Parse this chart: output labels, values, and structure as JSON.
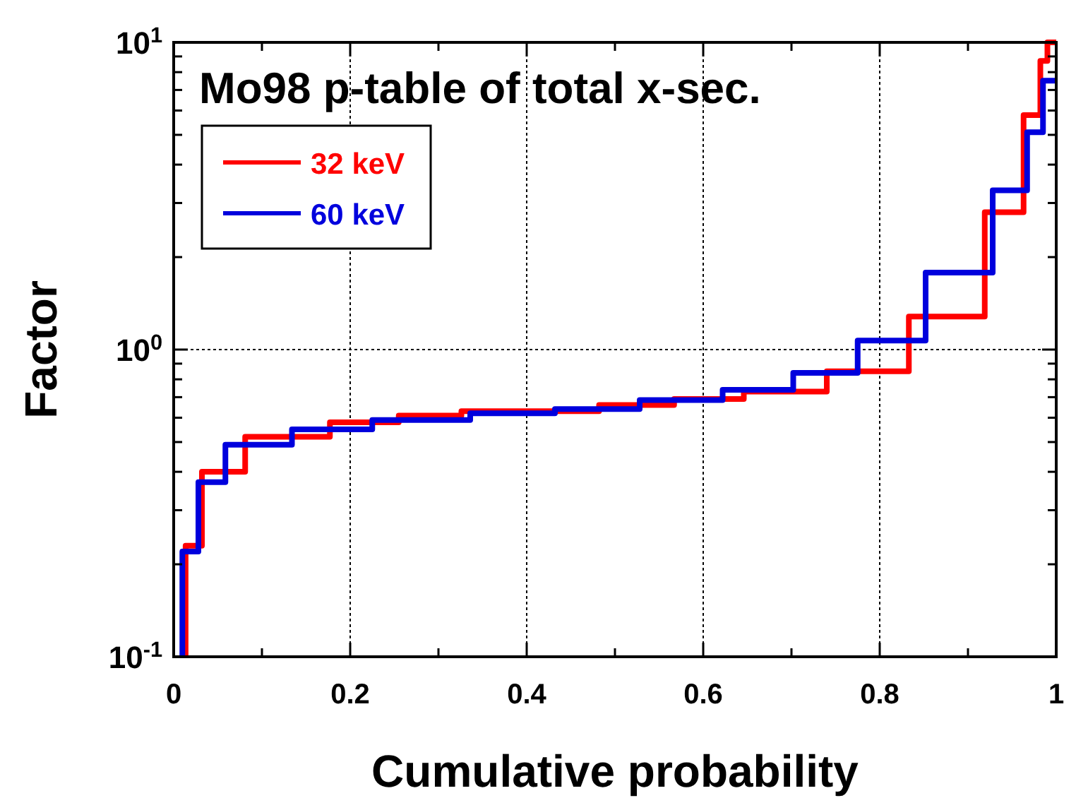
{
  "chart_data": {
    "type": "step",
    "title": "Mo98 p-table of total x-sec.",
    "xlabel": "Cumulative probability",
    "ylabel": "Factor",
    "log": "y",
    "grid": true,
    "legend": "top left",
    "line_style": "solid",
    "marker": "none",
    "xlim": [
      0,
      1
    ],
    "ylim": [
      0.1,
      10
    ],
    "xticks": [
      0,
      {
        "value": 0.1,
        "label": null
      },
      0.2,
      {
        "value": 0.3,
        "label": null
      },
      0.4,
      {
        "value": 0.5,
        "label": null
      },
      0.6,
      {
        "value": 0.7,
        "label": null
      },
      0.8,
      {
        "value": 0.9,
        "label": null
      },
      1
    ],
    "yticks": [
      {
        "value": 0.1,
        "label": "10$^{-1}$"
      },
      {
        "value": 0.2,
        "label": null
      },
      {
        "value": 0.3,
        "label": null
      },
      {
        "value": 0.4,
        "label": null
      },
      {
        "value": 0.5,
        "label": null
      },
      {
        "value": 0.6,
        "label": null
      },
      {
        "value": 0.7,
        "label": null
      },
      {
        "value": 0.8,
        "label": null
      },
      {
        "value": 0.9,
        "label": null
      },
      {
        "value": 1,
        "label": "10$^{0}$"
      },
      {
        "value": 2,
        "label": null
      },
      {
        "value": 3,
        "label": null
      },
      {
        "value": 4,
        "label": null
      },
      {
        "value": 5,
        "label": null
      },
      {
        "value": 6,
        "label": null
      },
      {
        "value": 7,
        "label": null
      },
      {
        "value": 8,
        "label": null
      },
      {
        "value": 9,
        "label": null
      },
      {
        "value": 10,
        "label": "10$^{1}$"
      }
    ],
    "series": [
      {
        "name": "32 keV",
        "color": "#ff0000",
        "x": [
          0.0135,
          0.0135,
          0.032,
          0.081,
          0.177,
          0.255,
          0.326,
          0.482,
          0.567,
          0.646,
          0.74,
          0.833,
          0.919,
          0.963,
          0.982,
          0.99,
          1
        ],
        "values": [
          0.1,
          0.23,
          0.4,
          0.52,
          0.58,
          0.61,
          0.63,
          0.66,
          0.69,
          0.73,
          0.85,
          1.28,
          2.8,
          5.8,
          8.7,
          10,
          10
        ]
      },
      {
        "name": "60 keV",
        "color": "#0000dd",
        "x": [
          0.0098,
          0.0098,
          0.028,
          0.0586,
          0.134,
          0.225,
          0.336,
          0.432,
          0.528,
          0.622,
          0.702,
          0.775,
          0.852,
          0.928,
          0.967,
          0.985,
          1
        ],
        "values": [
          0.1,
          0.22,
          0.37,
          0.49,
          0.55,
          0.59,
          0.62,
          0.64,
          0.685,
          0.74,
          0.84,
          1.07,
          1.78,
          3.3,
          5.1,
          7.5,
          7.5
        ]
      }
    ]
  }
}
